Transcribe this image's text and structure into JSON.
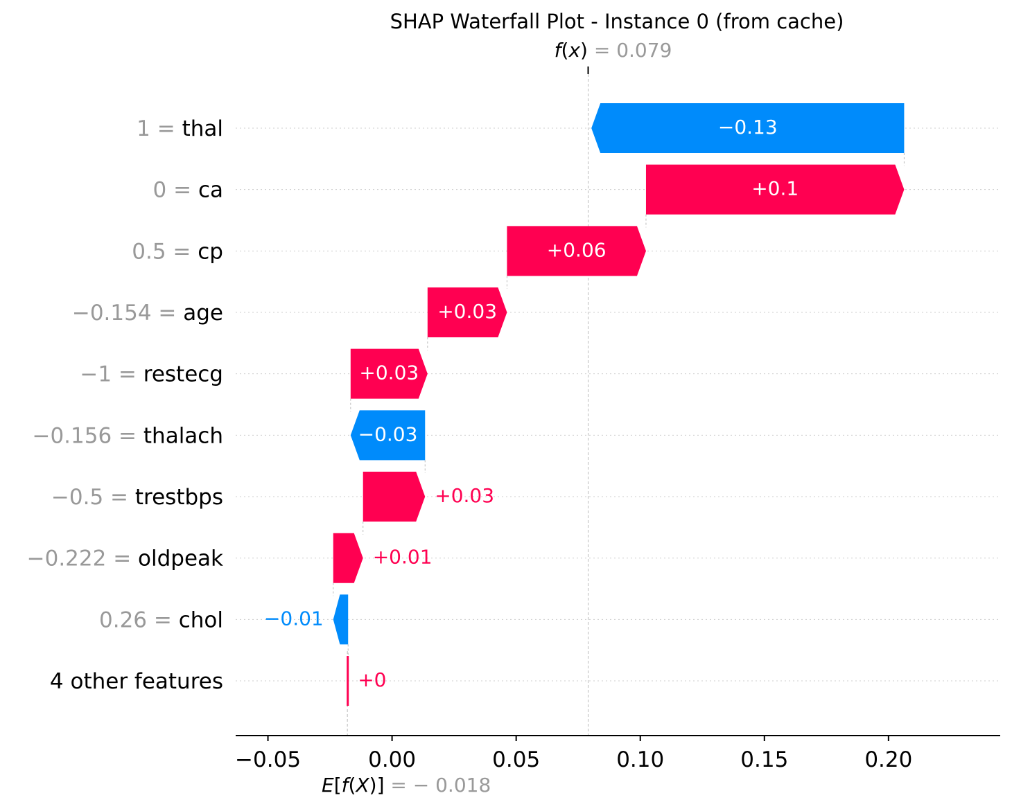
{
  "chart_data": {
    "type": "waterfall",
    "title": "SHAP Waterfall Plot - Instance 0 (from cache)",
    "fx_label": {
      "prefix": "f",
      "var": "x",
      "value_text": "= 0.079"
    },
    "ex_label": {
      "prefix": "E[",
      "var": "f",
      "mid": "(X)]",
      "value_text": "= − 0.018"
    },
    "base_value": -0.018,
    "fx_value": 0.079,
    "xlim": [
      -0.063,
      0.245
    ],
    "x_ticks": [
      {
        "value": -0.05,
        "label": "−0.05"
      },
      {
        "value": 0.0,
        "label": "0.00"
      },
      {
        "value": 0.05,
        "label": "0.05"
      },
      {
        "value": 0.1,
        "label": "0.10"
      },
      {
        "value": 0.15,
        "label": "0.15"
      },
      {
        "value": 0.2,
        "label": "0.20"
      }
    ],
    "features": [
      {
        "feature_value": "1",
        "feature": "thal",
        "value": -0.126,
        "label": "−0.13"
      },
      {
        "feature_value": "0",
        "feature": "ca",
        "value": 0.104,
        "label": "+0.1"
      },
      {
        "feature_value": "0.5",
        "feature": "cp",
        "value": 0.056,
        "label": "+0.06"
      },
      {
        "feature_value": "−0.154",
        "feature": "age",
        "value": 0.032,
        "label": "+0.03"
      },
      {
        "feature_value": "−1",
        "feature": "restecg",
        "value": 0.031,
        "label": "+0.03"
      },
      {
        "feature_value": "−0.156",
        "feature": "thalach",
        "value": -0.03,
        "label": "−0.03"
      },
      {
        "feature_value": "−0.5",
        "feature": "trestbps",
        "value": 0.025,
        "label": "+0.03"
      },
      {
        "feature_value": "−0.222",
        "feature": "oldpeak",
        "value": 0.012,
        "label": "+0.01"
      },
      {
        "feature_value": "0.26",
        "feature": "chol",
        "value": -0.006,
        "label": "−0.01"
      },
      {
        "feature_value": "",
        "feature": "4 other features",
        "value": 0.0003,
        "label": "+0"
      }
    ],
    "colors": {
      "positive": "#ff0051",
      "negative": "#008bfb",
      "axis": "#000000",
      "grid": "#cccccc",
      "muted": "#999999",
      "text": "#000000"
    }
  }
}
